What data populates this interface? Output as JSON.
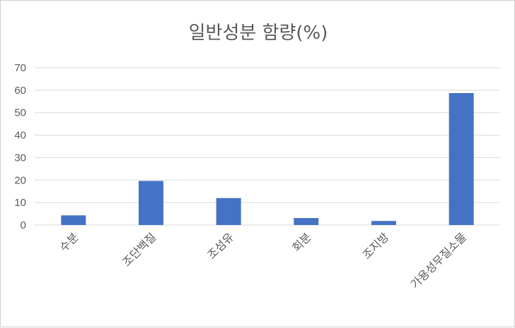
{
  "chart_data": {
    "type": "bar",
    "title": "일반성분 함량(%)",
    "xlabel": "",
    "ylabel": "",
    "categories": [
      "수분",
      "조단백질",
      "조섬유",
      "회분",
      "조지방",
      "가용성무질소물"
    ],
    "values": [
      4.3,
      19.6,
      12.0,
      3.1,
      1.8,
      58.7
    ],
    "ylim": [
      0,
      70
    ],
    "yticks": [
      0,
      10,
      20,
      30,
      40,
      50,
      60,
      70
    ],
    "grid": true,
    "legend": "none",
    "bar_color": "#4472c4"
  }
}
